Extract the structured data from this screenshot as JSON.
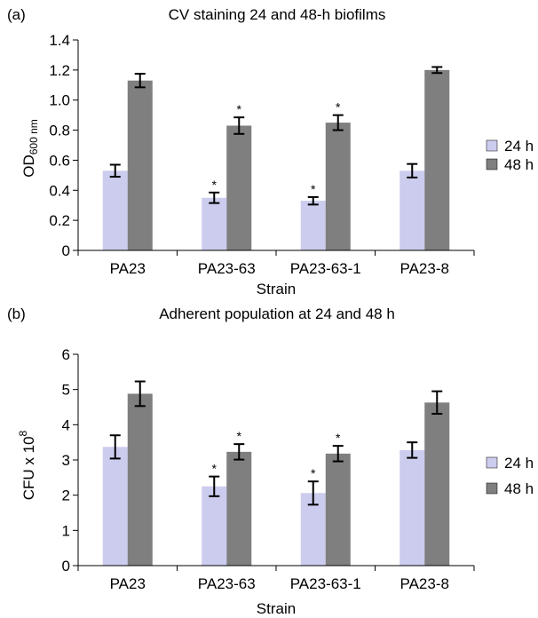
{
  "colors": {
    "s24": "#ccccee",
    "s48": "#7f7f7f",
    "axis": "#000000"
  },
  "chart_data": [
    {
      "panel": "(a)",
      "type": "bar",
      "title": "CV staining 24 and 48-h biofilms",
      "xlabel": "Strain",
      "ylabel_main": "OD",
      "ylabel_sub": "600 nm",
      "ylim": [
        0,
        1.4
      ],
      "yticks": [
        "0",
        "0.2",
        "0.4",
        "0.6",
        "0.8",
        "1.0",
        "1.2",
        "1.4"
      ],
      "categories": [
        "PA23",
        "PA23-63",
        "PA23-63-1",
        "PA23-8"
      ],
      "series": [
        {
          "name": "24 h",
          "values": [
            0.53,
            0.35,
            0.33,
            0.53
          ],
          "errors": [
            0.04,
            0.035,
            0.025,
            0.045
          ],
          "sig": [
            false,
            true,
            true,
            false
          ]
        },
        {
          "name": "48 h",
          "values": [
            1.13,
            0.83,
            0.85,
            1.2
          ],
          "errors": [
            0.045,
            0.055,
            0.05,
            0.02
          ],
          "sig": [
            false,
            true,
            true,
            false
          ]
        }
      ],
      "sig_marker": "*",
      "legend_position": "right"
    },
    {
      "panel": "(b)",
      "type": "bar",
      "title": "Adherent population at 24 and 48 h",
      "xlabel": "Strain",
      "ylabel_main": "CFU x 10",
      "ylabel_sup": "8",
      "ylim": [
        0,
        6
      ],
      "yticks": [
        "0",
        "1",
        "2",
        "3",
        "4",
        "5",
        "6"
      ],
      "categories": [
        "PA23",
        "PA23-63",
        "PA23-63-1",
        "PA23-8"
      ],
      "series": [
        {
          "name": "24 h",
          "values": [
            3.37,
            2.25,
            2.06,
            3.28
          ],
          "errors": [
            0.33,
            0.28,
            0.33,
            0.22
          ],
          "sig": [
            false,
            true,
            true,
            false
          ]
        },
        {
          "name": "48 h",
          "values": [
            4.88,
            3.23,
            3.18,
            4.63
          ],
          "errors": [
            0.35,
            0.22,
            0.22,
            0.32
          ],
          "sig": [
            false,
            true,
            true,
            false
          ]
        }
      ],
      "sig_marker": "*",
      "legend_position": "right"
    }
  ]
}
